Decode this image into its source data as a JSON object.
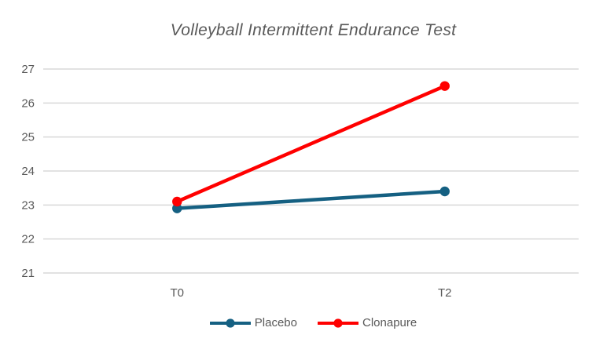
{
  "chart_data": {
    "type": "line",
    "title": "Volleyball Intermittent Endurance Test",
    "categories": [
      "T0",
      "T2"
    ],
    "series": [
      {
        "name": "Placebo",
        "color": "#156082",
        "values": [
          22.9,
          23.4
        ]
      },
      {
        "name": "Clonapure",
        "color": "#FF0000",
        "values": [
          23.1,
          26.5
        ]
      }
    ],
    "ylim": [
      21,
      27
    ],
    "yticks": [
      21,
      22,
      23,
      24,
      25,
      26,
      27
    ],
    "grid": true,
    "legend_position": "bottom",
    "colors": {
      "grid_line": "#D9D9D9",
      "text": "#595959",
      "background": "#FFFFFF"
    }
  }
}
